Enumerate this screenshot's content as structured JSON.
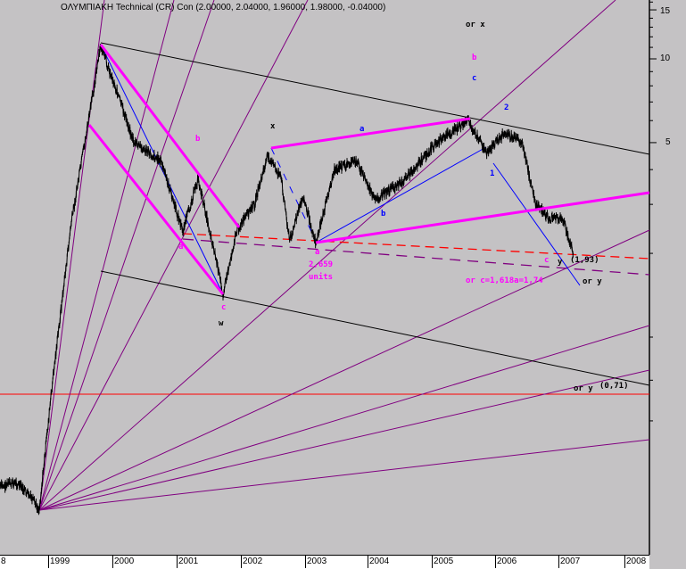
{
  "title": "ΟΛΥΜΠΙΑΚΗ Technical (CR) Con (2.00000, 2.04000, 1.96000, 1.98000, -0.04000)",
  "chart_data": {
    "type": "line",
    "y_scale": "log",
    "ylim": [
      0.22,
      17
    ],
    "xlim": [
      1998.3,
      2008.4
    ],
    "grid": false,
    "y_ticks": [
      "15",
      "10",
      "5"
    ],
    "y_tick_values": [
      15,
      10,
      5
    ],
    "x_ticks": [
      "8",
      "1999",
      "2000",
      "2001",
      "2002",
      "2003",
      "2004",
      "2005",
      "2006",
      "2007",
      "2008"
    ],
    "price": [
      [
        1998.25,
        0.29
      ],
      [
        1998.5,
        0.3
      ],
      [
        1998.7,
        0.27
      ],
      [
        1998.86,
        0.24
      ],
      [
        1999.08,
        0.73
      ],
      [
        1999.36,
        2.57
      ],
      [
        1999.64,
        6.2
      ],
      [
        1999.82,
        11.1
      ],
      [
        2000.06,
        7.8
      ],
      [
        2000.34,
        5.0
      ],
      [
        2000.76,
        4.3
      ],
      [
        2001.1,
        2.4
      ],
      [
        2001.34,
        3.7
      ],
      [
        2001.59,
        2.06
      ],
      [
        2001.73,
        1.43
      ],
      [
        2001.94,
        2.4
      ],
      [
        2002.22,
        3.0
      ],
      [
        2002.43,
        4.5
      ],
      [
        2002.64,
        3.7
      ],
      [
        2002.77,
        2.22
      ],
      [
        2002.98,
        3.2
      ],
      [
        2003.18,
        2.18
      ],
      [
        2003.47,
        4.0
      ],
      [
        2003.82,
        4.3
      ],
      [
        2004.1,
        3.1
      ],
      [
        2004.52,
        3.6
      ],
      [
        2005.07,
        5.0
      ],
      [
        2005.56,
        6.0
      ],
      [
        2005.84,
        4.6
      ],
      [
        2006.12,
        5.4
      ],
      [
        2006.4,
        5.0
      ],
      [
        2006.61,
        3.0
      ],
      [
        2006.82,
        2.67
      ],
      [
        2007.03,
        2.67
      ],
      [
        2007.2,
        2.0
      ]
    ],
    "colors": {
      "price": "#000000",
      "fan": "#800080",
      "channel": "#ff00ff",
      "trend": "#0000ff",
      "support": "#ff0000"
    },
    "annotations": [
      {
        "text": "or x",
        "color": "#000000"
      },
      {
        "text": "b",
        "color": "#ff00ff"
      },
      {
        "text": "c",
        "color": "#0000ff"
      },
      {
        "text": "2",
        "color": "#0000ff"
      },
      {
        "text": "a",
        "color": "#0000ff"
      },
      {
        "text": "x",
        "color": "#000000"
      },
      {
        "text": "b",
        "color": "#ff00ff"
      },
      {
        "text": "1",
        "color": "#0000ff"
      },
      {
        "text": "b",
        "color": "#0000ff"
      },
      {
        "text": "a",
        "color": "#ff00ff"
      },
      {
        "text": "a",
        "color": "#ff00ff"
      },
      {
        "text": "2,659",
        "color": "#ff00ff"
      },
      {
        "text": "units",
        "color": "#ff00ff"
      },
      {
        "text": "c",
        "color": "#ff00ff"
      },
      {
        "text": "w",
        "color": "#000000"
      },
      {
        "text": "c",
        "color": "#ff00ff"
      },
      {
        "text": "y",
        "color": "#000000"
      },
      {
        "text": "(1,93)",
        "color": "#000000"
      },
      {
        "text": "or c=1,618a=1,74",
        "color": "#ff00ff"
      },
      {
        "text": "or y",
        "color": "#000000"
      },
      {
        "text": "or y",
        "color": "#000000"
      },
      {
        "text": "(0,71)",
        "color": "#000000"
      }
    ]
  }
}
